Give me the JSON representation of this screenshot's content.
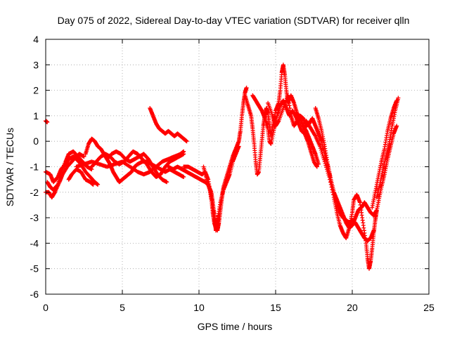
{
  "chart_data": {
    "type": "scatter",
    "title": "Day 075 of 2022, Sidereal Day-to-day VTEC variation (SDTVAR) for receiver qlln",
    "xlabel": "GPS time / hours",
    "ylabel": "SDTVAR / TECUs",
    "xlim": [
      0,
      25
    ],
    "ylim": [
      -6,
      4
    ],
    "x_ticks": [
      0,
      5,
      10,
      15,
      20,
      25
    ],
    "y_ticks": [
      -6,
      -5,
      -4,
      -3,
      -2,
      -1,
      0,
      1,
      2,
      3,
      4
    ],
    "x_tick_labels": [
      "0",
      "5",
      "10",
      "15",
      "20",
      "25"
    ],
    "y_tick_labels": [
      "-6",
      "-5",
      "-4",
      "-3",
      "-2",
      "-1",
      "0",
      "1",
      "2",
      "3",
      "4"
    ],
    "grid": true,
    "marker": "+",
    "series_color": "#ff0000",
    "tracks": [
      [
        [
          0.0,
          0.8
        ],
        [
          0.1,
          0.75
        ]
      ],
      [
        [
          0.0,
          -1.2
        ],
        [
          0.3,
          -1.3
        ],
        [
          0.5,
          -1.6
        ],
        [
          0.8,
          -1.4
        ],
        [
          1.0,
          -1.1
        ],
        [
          1.3,
          -0.9
        ],
        [
          1.5,
          -0.7
        ],
        [
          1.8,
          -0.6
        ],
        [
          2.0,
          -0.7
        ],
        [
          2.3,
          -0.9
        ],
        [
          2.6,
          -1.2
        ],
        [
          2.9,
          -1.4
        ],
        [
          3.2,
          -1.6
        ],
        [
          3.4,
          -1.7
        ]
      ],
      [
        [
          0.0,
          -2.0
        ],
        [
          0.2,
          -2.0
        ],
        [
          0.4,
          -2.2
        ],
        [
          0.6,
          -2.0
        ],
        [
          0.9,
          -1.6
        ],
        [
          1.1,
          -1.3
        ],
        [
          1.4,
          -1.0
        ],
        [
          1.7,
          -0.8
        ],
        [
          2.0,
          -0.6
        ],
        [
          2.2,
          -0.5
        ],
        [
          2.5,
          -0.6
        ]
      ],
      [
        [
          0.1,
          -1.6
        ],
        [
          0.3,
          -1.8
        ],
        [
          0.5,
          -1.9
        ],
        [
          0.8,
          -1.7
        ],
        [
          1.0,
          -1.2
        ],
        [
          1.3,
          -0.8
        ],
        [
          1.5,
          -0.5
        ],
        [
          1.8,
          -0.4
        ],
        [
          2.1,
          -0.6
        ],
        [
          2.4,
          -0.8
        ],
        [
          2.7,
          -1.0
        ],
        [
          3.0,
          -1.1
        ]
      ],
      [
        [
          1.5,
          -1.5
        ],
        [
          1.7,
          -1.3
        ],
        [
          2.0,
          -1.1
        ],
        [
          2.3,
          -1.2
        ],
        [
          2.6,
          -1.5
        ],
        [
          2.9,
          -1.6
        ],
        [
          3.1,
          -1.7
        ]
      ],
      [
        [
          2.6,
          -0.5
        ],
        [
          2.8,
          -0.1
        ],
        [
          3.0,
          0.1
        ],
        [
          3.2,
          0.0
        ],
        [
          3.4,
          -0.2
        ],
        [
          3.6,
          -0.3
        ],
        [
          3.8,
          -0.5
        ],
        [
          4.0,
          -0.7
        ],
        [
          4.2,
          -0.9
        ],
        [
          4.4,
          -1.2
        ],
        [
          4.6,
          -1.4
        ],
        [
          4.8,
          -1.6
        ],
        [
          5.0,
          -1.5
        ],
        [
          5.2,
          -1.4
        ],
        [
          5.4,
          -1.3
        ],
        [
          5.6,
          -1.2
        ],
        [
          5.8,
          -1.0
        ],
        [
          6.0,
          -0.9
        ],
        [
          6.3,
          -0.8
        ],
        [
          6.6,
          -0.8
        ],
        [
          6.9,
          -0.9
        ],
        [
          7.2,
          -1.0
        ],
        [
          7.5,
          -1.1
        ],
        [
          7.8,
          -1.2
        ],
        [
          8.1,
          -1.1
        ],
        [
          8.4,
          -1.2
        ],
        [
          8.7,
          -1.3
        ],
        [
          9.0,
          -1.4
        ]
      ],
      [
        [
          2.0,
          -1.0
        ],
        [
          2.5,
          -0.9
        ],
        [
          3.0,
          -0.8
        ],
        [
          3.5,
          -0.9
        ],
        [
          4.0,
          -1.0
        ],
        [
          4.5,
          -0.9
        ],
        [
          5.0,
          -0.8
        ],
        [
          5.5,
          -1.0
        ],
        [
          6.0,
          -1.2
        ],
        [
          6.4,
          -1.3
        ],
        [
          6.8,
          -1.2
        ],
        [
          7.2,
          -1.0
        ],
        [
          7.6,
          -0.8
        ],
        [
          8.0,
          -0.7
        ],
        [
          8.4,
          -0.6
        ],
        [
          8.8,
          -0.5
        ],
        [
          9.0,
          -0.4
        ]
      ],
      [
        [
          3.0,
          -1.0
        ],
        [
          3.3,
          -0.8
        ],
        [
          3.6,
          -0.6
        ],
        [
          3.9,
          -0.5
        ],
        [
          4.2,
          -0.6
        ],
        [
          4.5,
          -0.8
        ],
        [
          4.8,
          -0.9
        ],
        [
          5.1,
          -0.8
        ],
        [
          5.4,
          -0.6
        ],
        [
          5.7,
          -0.4
        ],
        [
          6.0,
          -0.5
        ],
        [
          6.3,
          -0.7
        ],
        [
          6.6,
          -0.9
        ],
        [
          6.9,
          -1.2
        ],
        [
          7.2,
          -1.4
        ],
        [
          7.5,
          -1.3
        ],
        [
          7.8,
          -1.0
        ],
        [
          8.1,
          -0.8
        ],
        [
          8.4,
          -0.7
        ],
        [
          8.7,
          -0.6
        ],
        [
          9.0,
          -0.5
        ]
      ],
      [
        [
          4.0,
          -0.7
        ],
        [
          4.3,
          -0.5
        ],
        [
          4.6,
          -0.4
        ],
        [
          4.9,
          -0.5
        ],
        [
          5.2,
          -0.7
        ],
        [
          5.5,
          -0.8
        ],
        [
          5.8,
          -0.7
        ],
        [
          6.1,
          -0.6
        ],
        [
          6.4,
          -0.5
        ],
        [
          6.7,
          -0.7
        ],
        [
          7.0,
          -1.0
        ],
        [
          7.3,
          -1.3
        ],
        [
          7.6,
          -1.5
        ],
        [
          7.9,
          -1.6
        ]
      ],
      [
        [
          6.8,
          1.3
        ],
        [
          7.0,
          1.0
        ],
        [
          7.2,
          0.7
        ],
        [
          7.4,
          0.5
        ],
        [
          7.6,
          0.4
        ],
        [
          7.8,
          0.3
        ],
        [
          8.0,
          0.4
        ],
        [
          8.2,
          0.3
        ],
        [
          8.4,
          0.2
        ],
        [
          8.6,
          0.3
        ],
        [
          8.8,
          0.2
        ],
        [
          9.0,
          0.1
        ],
        [
          9.2,
          0.0
        ]
      ],
      [
        [
          8.0,
          -1.0
        ],
        [
          8.3,
          -1.1
        ],
        [
          8.6,
          -1.0
        ],
        [
          8.9,
          -1.1
        ],
        [
          9.2,
          -1.2
        ],
        [
          9.5,
          -1.3
        ],
        [
          9.8,
          -1.4
        ],
        [
          10.1,
          -1.5
        ],
        [
          10.4,
          -1.6
        ],
        [
          10.6,
          -1.7
        ],
        [
          10.8,
          -2.0
        ],
        [
          10.9,
          -2.4
        ],
        [
          11.0,
          -2.9
        ],
        [
          11.1,
          -3.3
        ],
        [
          11.2,
          -3.5
        ],
        [
          11.3,
          -3.2
        ],
        [
          11.4,
          -2.7
        ],
        [
          11.5,
          -2.2
        ],
        [
          11.6,
          -1.8
        ],
        [
          11.8,
          -1.4
        ],
        [
          12.0,
          -1.0
        ],
        [
          12.2,
          -0.6
        ],
        [
          12.4,
          -0.3
        ],
        [
          12.6,
          0.0
        ],
        [
          12.7,
          0.4
        ],
        [
          12.8,
          1.0
        ],
        [
          12.9,
          1.5
        ],
        [
          13.0,
          1.9
        ],
        [
          13.1,
          2.1
        ]
      ],
      [
        [
          9.0,
          -1.0
        ],
        [
          9.3,
          -1.0
        ],
        [
          9.6,
          -1.1
        ],
        [
          9.9,
          -1.2
        ],
        [
          10.2,
          -1.3
        ],
        [
          10.4,
          -1.2
        ],
        [
          10.6,
          -1.5
        ],
        [
          10.8,
          -2.2
        ],
        [
          10.9,
          -2.8
        ],
        [
          11.0,
          -3.2
        ],
        [
          11.1,
          -3.4
        ],
        [
          11.2,
          -3.1
        ],
        [
          11.4,
          -2.4
        ],
        [
          11.6,
          -1.9
        ],
        [
          11.8,
          -1.6
        ],
        [
          12.0,
          -1.3
        ],
        [
          12.2,
          -0.8
        ],
        [
          12.4,
          -0.5
        ],
        [
          12.6,
          -0.2
        ]
      ],
      [
        [
          10.3,
          -1.0
        ],
        [
          10.5,
          -1.5
        ],
        [
          10.7,
          -1.9
        ],
        [
          10.9,
          -2.6
        ],
        [
          11.0,
          -3.0
        ],
        [
          11.1,
          -3.5
        ],
        [
          11.2,
          -3.3
        ],
        [
          11.3,
          -2.9
        ]
      ],
      [
        [
          13.0,
          1.8
        ],
        [
          13.2,
          1.4
        ],
        [
          13.4,
          1.0
        ],
        [
          13.5,
          0.5
        ],
        [
          13.6,
          -0.1
        ],
        [
          13.7,
          -0.8
        ],
        [
          13.8,
          -1.3
        ],
        [
          13.9,
          -1.2
        ],
        [
          14.0,
          -0.6
        ],
        [
          14.1,
          0.0
        ],
        [
          14.2,
          0.6
        ],
        [
          14.3,
          1.0
        ],
        [
          14.4,
          1.3
        ],
        [
          14.5,
          1.1
        ],
        [
          14.6,
          0.6
        ],
        [
          14.7,
          0.2
        ],
        [
          14.8,
          0.6
        ],
        [
          15.0,
          1.2
        ],
        [
          15.2,
          1.5
        ],
        [
          15.3,
          2.0
        ],
        [
          15.4,
          2.7
        ],
        [
          15.5,
          3.0
        ],
        [
          15.6,
          2.6
        ],
        [
          15.7,
          2.0
        ],
        [
          15.8,
          1.5
        ],
        [
          16.0,
          1.8
        ],
        [
          16.2,
          1.5
        ],
        [
          16.4,
          1.1
        ],
        [
          16.6,
          0.9
        ],
        [
          16.8,
          0.6
        ],
        [
          17.0,
          0.4
        ],
        [
          17.2,
          0.1
        ],
        [
          17.4,
          -0.2
        ],
        [
          17.6,
          -0.5
        ],
        [
          17.8,
          -0.9
        ]
      ],
      [
        [
          13.5,
          1.8
        ],
        [
          13.7,
          1.6
        ],
        [
          13.9,
          1.4
        ],
        [
          14.1,
          1.2
        ],
        [
          14.3,
          0.9
        ],
        [
          14.5,
          0.5
        ],
        [
          14.6,
          0.0
        ],
        [
          14.7,
          -0.1
        ],
        [
          14.9,
          0.5
        ],
        [
          15.1,
          1.0
        ],
        [
          15.3,
          1.4
        ],
        [
          15.5,
          1.6
        ],
        [
          15.7,
          1.3
        ],
        [
          15.9,
          1.0
        ],
        [
          16.1,
          1.2
        ],
        [
          16.3,
          1.0
        ],
        [
          16.5,
          0.7
        ],
        [
          16.7,
          0.4
        ],
        [
          16.9,
          0.3
        ],
        [
          17.1,
          0.0
        ],
        [
          17.3,
          -0.4
        ],
        [
          17.5,
          -0.8
        ],
        [
          17.7,
          -1.0
        ]
      ],
      [
        [
          14.5,
          1.5
        ],
        [
          14.8,
          1.0
        ],
        [
          15.0,
          0.6
        ],
        [
          15.2,
          0.8
        ],
        [
          15.5,
          1.3
        ],
        [
          15.8,
          1.8
        ],
        [
          16.0,
          1.0
        ],
        [
          16.2,
          0.6
        ],
        [
          16.4,
          0.8
        ],
        [
          16.6,
          1.0
        ],
        [
          16.8,
          0.9
        ],
        [
          17.0,
          0.6
        ],
        [
          17.2,
          0.7
        ],
        [
          17.4,
          0.9
        ],
        [
          17.6,
          0.6
        ],
        [
          17.8,
          0.3
        ],
        [
          18.0,
          0.0
        ],
        [
          18.2,
          -0.5
        ],
        [
          18.4,
          -1.0
        ],
        [
          18.6,
          -1.5
        ],
        [
          18.8,
          -2.0
        ],
        [
          19.0,
          -2.5
        ],
        [
          19.2,
          -2.8
        ],
        [
          19.4,
          -3.0
        ],
        [
          19.6,
          -3.1
        ],
        [
          19.8,
          -3.2
        ],
        [
          20.0,
          -3.1
        ],
        [
          20.2,
          -3.2
        ],
        [
          20.4,
          -3.4
        ],
        [
          20.6,
          -3.6
        ],
        [
          20.8,
          -3.8
        ],
        [
          21.0,
          -3.9
        ],
        [
          21.2,
          -3.8
        ],
        [
          21.4,
          -3.5
        ]
      ],
      [
        [
          17.6,
          1.3
        ],
        [
          17.8,
          0.9
        ],
        [
          18.0,
          0.4
        ],
        [
          18.2,
          -0.2
        ],
        [
          18.4,
          -0.9
        ],
        [
          18.6,
          -1.5
        ],
        [
          18.8,
          -2.0
        ],
        [
          19.0,
          -2.3
        ],
        [
          19.2,
          -2.6
        ],
        [
          19.4,
          -2.9
        ],
        [
          19.6,
          -3.2
        ],
        [
          19.8,
          -3.4
        ],
        [
          20.0,
          -3.3
        ],
        [
          20.2,
          -3.0
        ],
        [
          20.4,
          -2.7
        ],
        [
          20.6,
          -2.6
        ],
        [
          20.8,
          -2.4
        ],
        [
          21.0,
          -2.6
        ],
        [
          21.2,
          -2.8
        ],
        [
          21.4,
          -2.9
        ],
        [
          21.6,
          -2.7
        ]
      ],
      [
        [
          17.0,
          0.8
        ],
        [
          17.3,
          0.5
        ],
        [
          17.6,
          0.2
        ],
        [
          17.9,
          -0.2
        ],
        [
          18.2,
          -0.8
        ],
        [
          18.5,
          -1.4
        ],
        [
          18.8,
          -2.2
        ],
        [
          19.0,
          -2.8
        ],
        [
          19.2,
          -3.3
        ],
        [
          19.4,
          -3.6
        ],
        [
          19.6,
          -3.8
        ],
        [
          19.8,
          -3.4
        ],
        [
          20.0,
          -2.8
        ],
        [
          20.1,
          -2.3
        ],
        [
          20.3,
          -2.1
        ],
        [
          20.5,
          -2.4
        ],
        [
          20.7,
          -3.2
        ],
        [
          20.9,
          -4.0
        ],
        [
          21.0,
          -4.6
        ],
        [
          21.1,
          -5.0
        ],
        [
          21.2,
          -4.7
        ],
        [
          21.3,
          -4.2
        ],
        [
          21.4,
          -3.6
        ],
        [
          21.5,
          -3.1
        ],
        [
          21.6,
          -2.7
        ]
      ],
      [
        [
          21.5,
          -3.0
        ],
        [
          21.7,
          -2.4
        ],
        [
          21.9,
          -1.8
        ],
        [
          22.1,
          -1.3
        ],
        [
          22.3,
          -0.7
        ],
        [
          22.5,
          -0.2
        ],
        [
          22.7,
          0.3
        ],
        [
          22.9,
          0.6
        ]
      ],
      [
        [
          21.3,
          -2.6
        ],
        [
          21.5,
          -2.0
        ],
        [
          21.7,
          -1.4
        ],
        [
          21.9,
          -0.8
        ],
        [
          22.1,
          -0.3
        ],
        [
          22.3,
          0.4
        ],
        [
          22.5,
          0.9
        ],
        [
          22.7,
          1.3
        ],
        [
          22.9,
          1.6
        ]
      ],
      [
        [
          21.6,
          -2.2
        ],
        [
          21.8,
          -1.7
        ],
        [
          22.0,
          -1.1
        ],
        [
          22.2,
          -0.6
        ],
        [
          22.4,
          -0.1
        ],
        [
          22.6,
          0.6
        ],
        [
          22.8,
          1.2
        ],
        [
          23.0,
          1.7
        ]
      ]
    ]
  }
}
